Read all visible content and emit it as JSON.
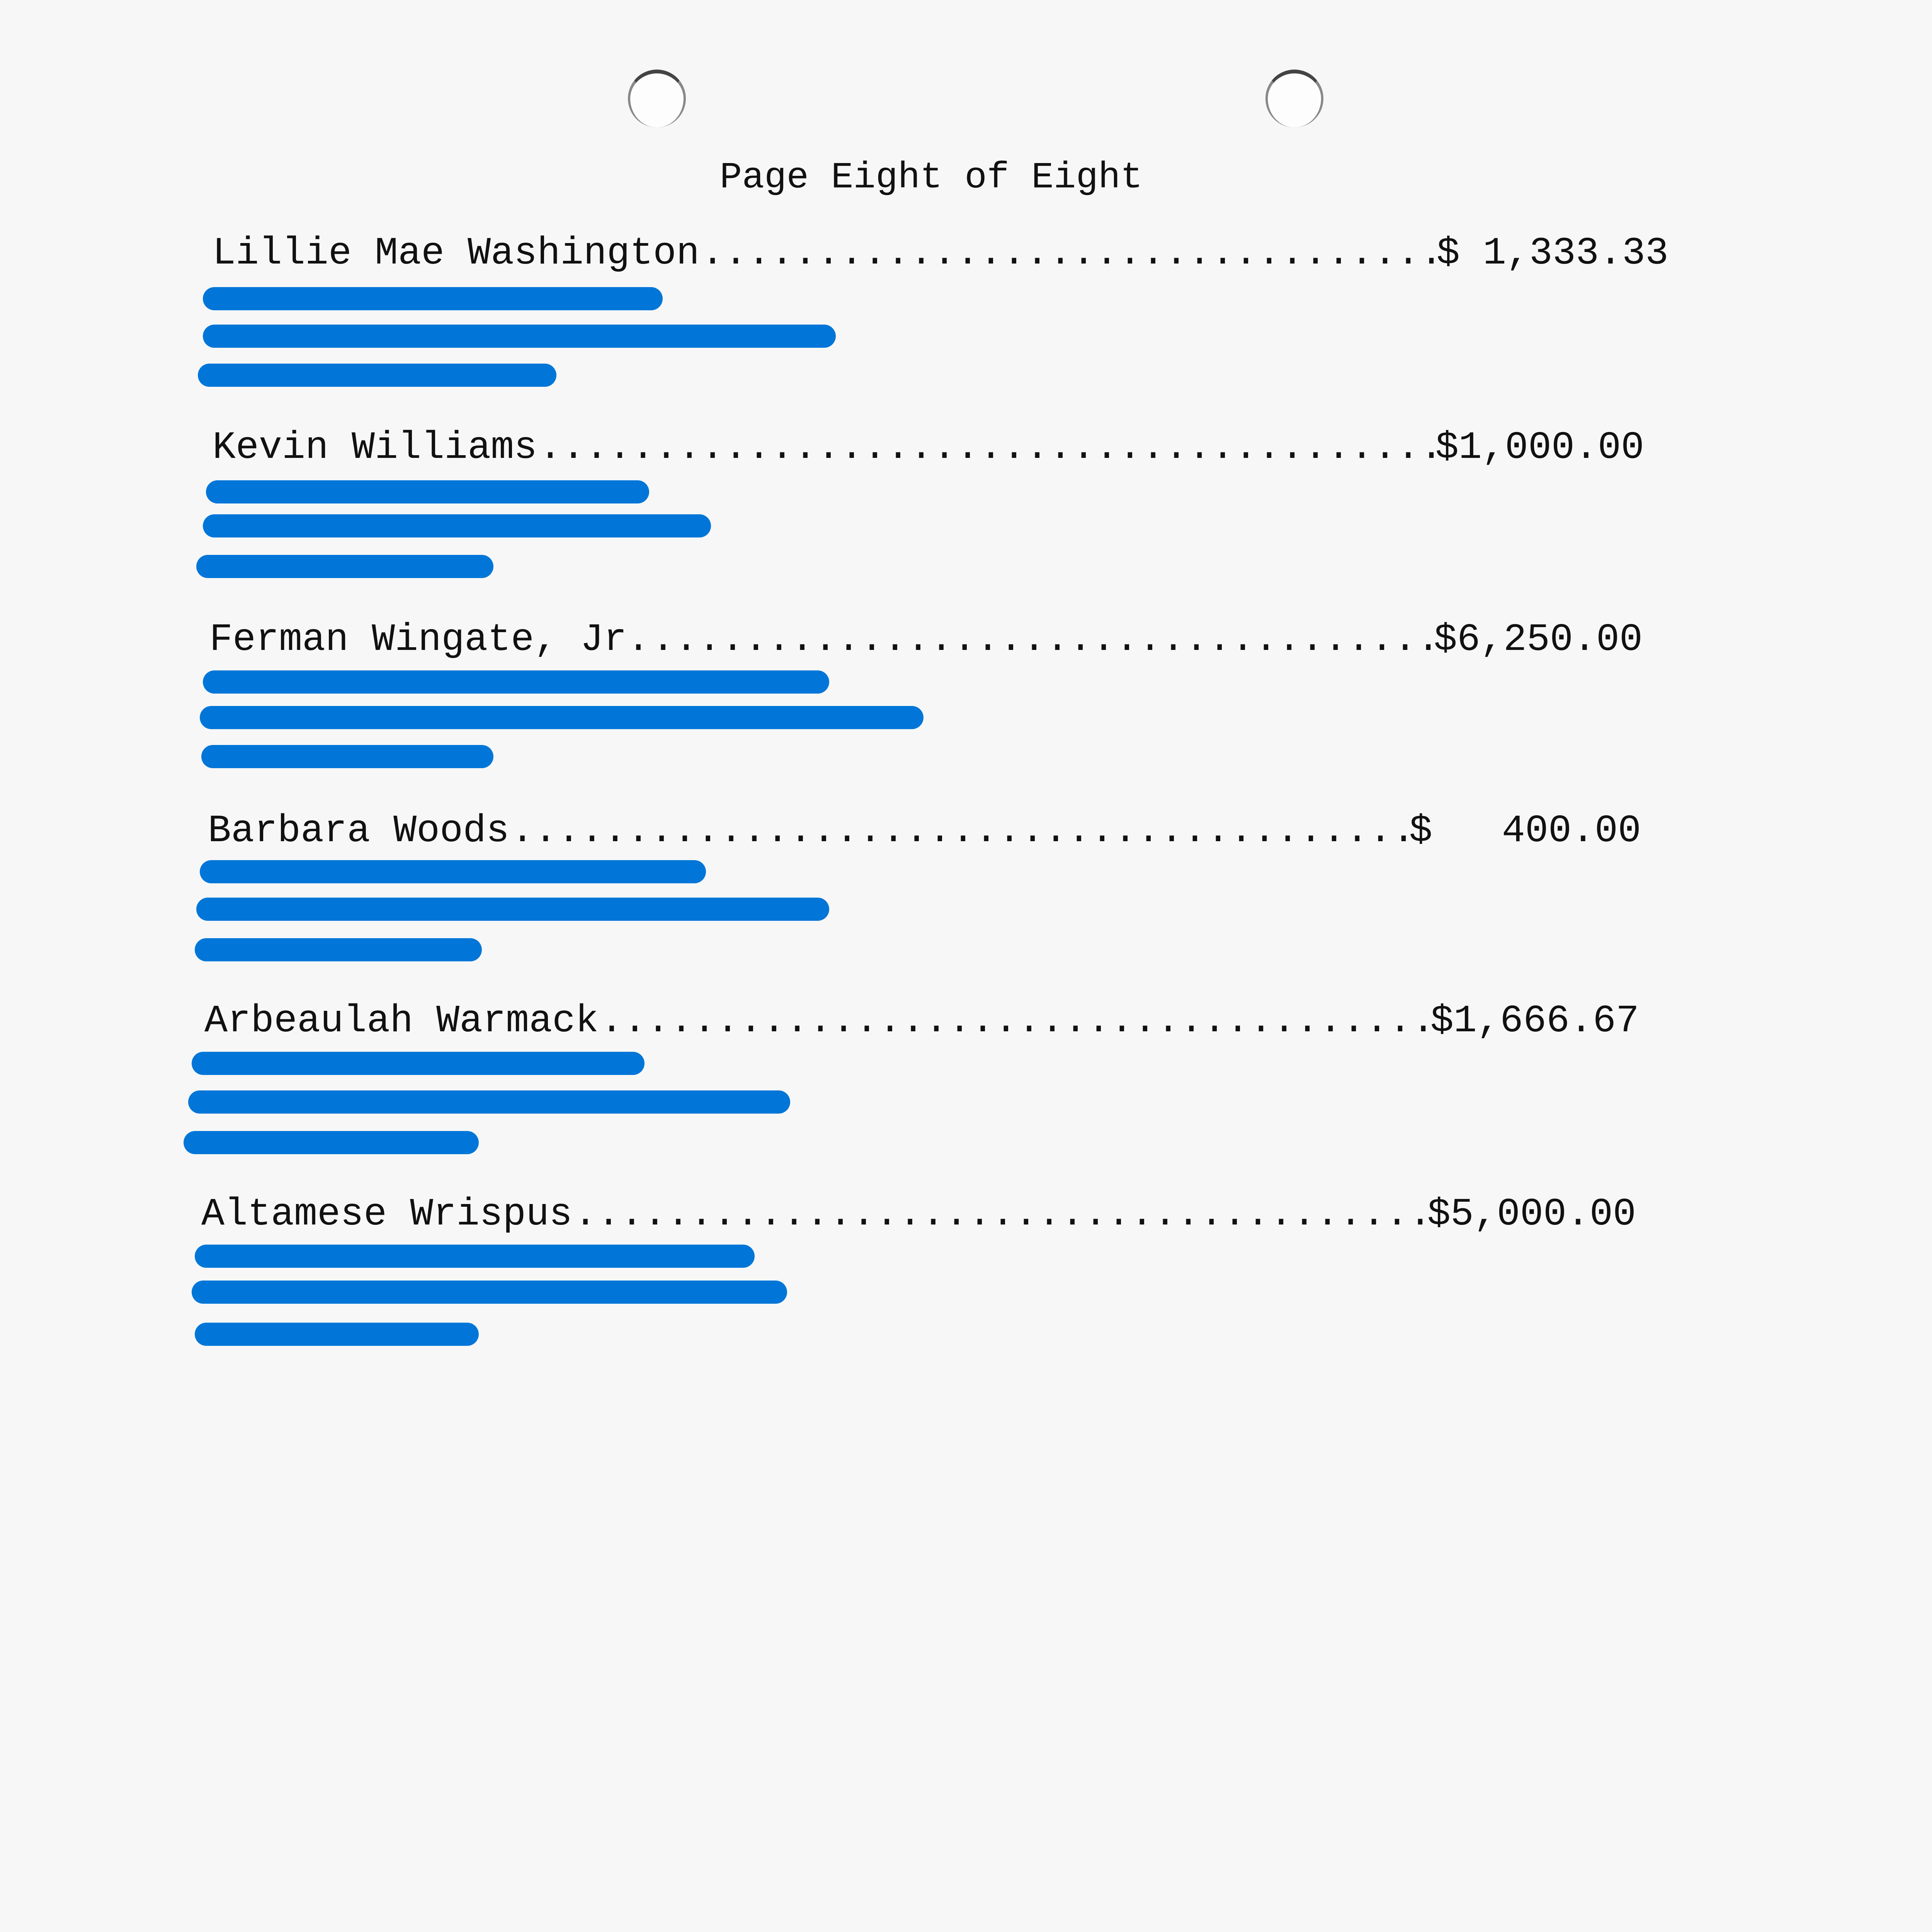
{
  "page_title": "Page Eight of Eight",
  "entries": [
    {
      "name": "Lillie Mae Washington",
      "amount": "$ 1,333.33"
    },
    {
      "name": "Kevin Williams",
      "amount": "$1,000.00"
    },
    {
      "name": "Ferman Wingate, Jr.",
      "amount": "$6,250.00"
    },
    {
      "name": "Barbara Woods",
      "amount": "$   400.00"
    },
    {
      "name": "Arbeaulah Warmack",
      "amount": "$1,666.67"
    },
    {
      "name": "Altamese Wrispus",
      "amount": "$5,000.00"
    }
  ],
  "colors": {
    "redaction": "#0276d8",
    "paper": "#f7f7f7",
    "ink": "#111111"
  }
}
